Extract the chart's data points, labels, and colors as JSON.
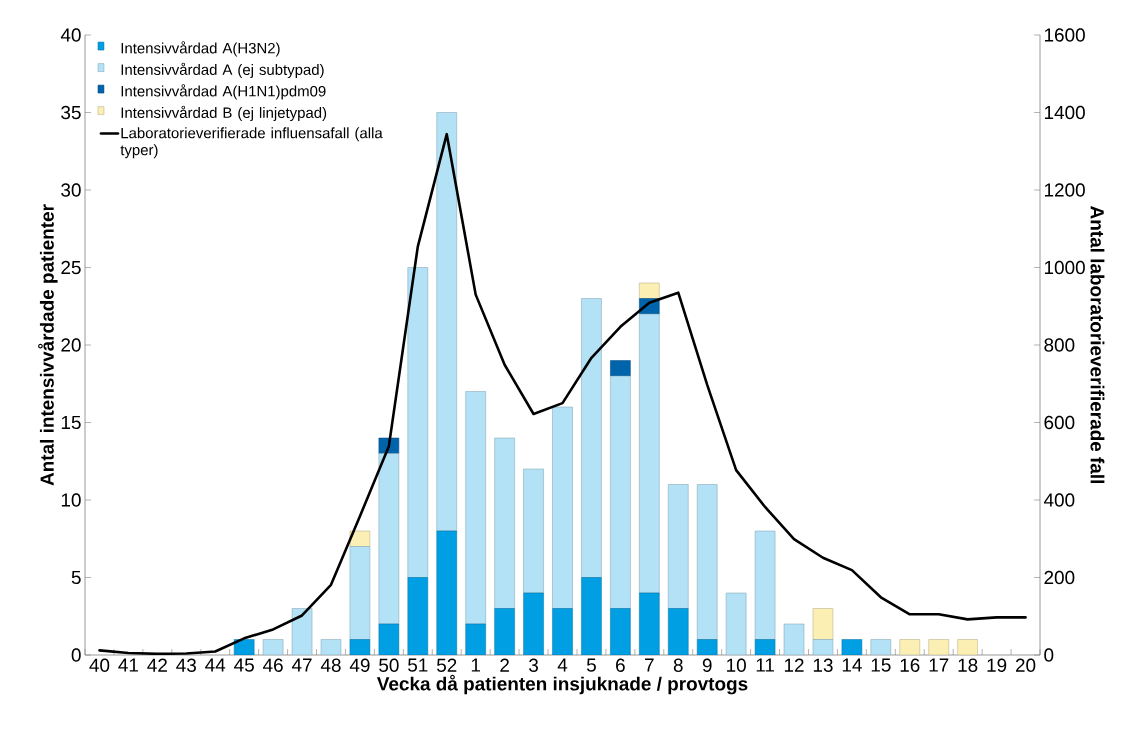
{
  "chart_data": {
    "type": "bar",
    "stacked": true,
    "xlabel": "Vecka då patienten insjuknade / provtogs",
    "ylabel": "Antal intensivvårdade patienter",
    "y2label": "Antal laboratorieverifierade fall",
    "categories": [
      "40",
      "41",
      "42",
      "43",
      "44",
      "45",
      "46",
      "47",
      "48",
      "49",
      "50",
      "51",
      "52",
      "1",
      "2",
      "3",
      "4",
      "5",
      "6",
      "7",
      "8",
      "9",
      "10",
      "11",
      "12",
      "13",
      "14",
      "15",
      "16",
      "17",
      "18",
      "19",
      "20"
    ],
    "series": [
      {
        "name": "Intensivvårdad A(H3N2)",
        "color": "#009fe3",
        "values": [
          0,
          0,
          0,
          0,
          0,
          1,
          0,
          0,
          0,
          1,
          2,
          5,
          8,
          2,
          3,
          4,
          3,
          5,
          3,
          4,
          3,
          1,
          0,
          1,
          0,
          0,
          1,
          0,
          0,
          0,
          0,
          0,
          0
        ]
      },
      {
        "name": "Intensivvårdad A (ej subtypad)",
        "color": "#b3e2f7",
        "values": [
          0,
          0,
          0,
          0,
          0,
          0,
          1,
          3,
          1,
          6,
          11,
          20,
          27,
          15,
          11,
          8,
          13,
          18,
          15,
          18,
          8,
          10,
          4,
          7,
          2,
          1,
          0,
          1,
          0,
          0,
          0,
          0,
          0
        ]
      },
      {
        "name": "Intensivvårdad A(H1N1)pdm09",
        "color": "#0064ad",
        "values": [
          0,
          0,
          0,
          0,
          0,
          0,
          0,
          0,
          0,
          0,
          1,
          0,
          0,
          0,
          0,
          0,
          0,
          0,
          1,
          1,
          0,
          0,
          0,
          0,
          0,
          0,
          0,
          0,
          0,
          0,
          0,
          0,
          0
        ]
      },
      {
        "name": "Intensivvårdad B (ej linjetypad)",
        "color": "#fbefb4",
        "values": [
          0,
          0,
          0,
          0,
          0,
          0,
          0,
          0,
          0,
          1,
          0,
          0,
          0,
          0,
          0,
          0,
          0,
          0,
          0,
          1,
          0,
          0,
          0,
          0,
          0,
          2,
          0,
          0,
          1,
          1,
          1,
          0,
          0
        ]
      },
      {
        "name": "Laboratorieverifierade influensafall (alla typer)",
        "type": "line",
        "axis": "y2",
        "color": "#000000",
        "values": [
          12,
          5,
          3,
          4,
          9,
          43,
          66,
          102,
          181,
          358,
          539,
          1054,
          1344,
          930,
          749,
          622,
          650,
          767,
          847,
          909,
          935,
          697,
          477,
          382,
          299,
          251,
          219,
          149,
          105,
          105,
          92,
          97,
          97
        ]
      }
    ],
    "ylim": [
      0,
      40
    ],
    "yticks": [
      0,
      5,
      10,
      15,
      20,
      25,
      30,
      35,
      40
    ],
    "y2lim": [
      0,
      1600
    ],
    "y2ticks": [
      0,
      200,
      400,
      600,
      800,
      1000,
      1200,
      1400,
      1600
    ],
    "legend": "top left"
  }
}
